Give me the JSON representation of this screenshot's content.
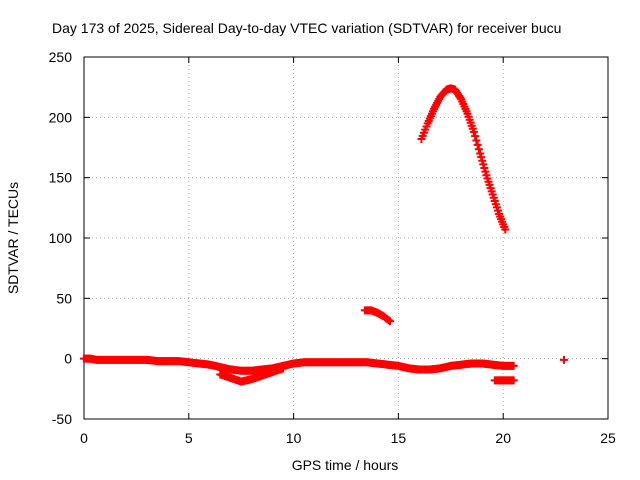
{
  "chart_data": {
    "type": "scatter",
    "title": "Day 173 of 2025, Sidereal Day-to-day VTEC variation (SDTVAR) for receiver bucu",
    "xlabel": "GPS time / hours",
    "ylabel": "SDTVAR / TECUs",
    "xlim": [
      0,
      25
    ],
    "ylim": [
      -50,
      250
    ],
    "xticks": [
      0,
      5,
      10,
      15,
      20,
      25
    ],
    "yticks": [
      -50,
      0,
      50,
      100,
      150,
      200,
      250
    ],
    "xtick_labels": [
      "0",
      "5",
      "10",
      "15",
      "20",
      "25"
    ],
    "ytick_labels": [
      "-50",
      "0",
      "50",
      "100",
      "150",
      "200",
      "250"
    ],
    "grid": true,
    "legend": "none",
    "marker": "+",
    "marker_color": "#ff0000",
    "series": [
      {
        "name": "baseline",
        "points": [
          [
            0.0,
            0
          ],
          [
            0.3,
            0
          ],
          [
            0.6,
            -1
          ],
          [
            1.0,
            -1
          ],
          [
            1.5,
            -1
          ],
          [
            2.0,
            -1
          ],
          [
            2.5,
            -1
          ],
          [
            3.0,
            -1
          ],
          [
            3.5,
            -2
          ],
          [
            4.0,
            -2
          ],
          [
            4.5,
            -2
          ],
          [
            5.0,
            -3
          ],
          [
            5.5,
            -4
          ],
          [
            6.0,
            -5
          ],
          [
            6.5,
            -7
          ],
          [
            7.0,
            -9
          ],
          [
            7.5,
            -10
          ],
          [
            8.0,
            -10
          ],
          [
            8.5,
            -9
          ],
          [
            9.0,
            -8
          ],
          [
            9.5,
            -6
          ],
          [
            10.0,
            -4
          ],
          [
            10.5,
            -3
          ],
          [
            11.0,
            -3
          ],
          [
            11.5,
            -3
          ],
          [
            12.0,
            -3
          ],
          [
            12.5,
            -3
          ],
          [
            13.0,
            -3
          ],
          [
            13.5,
            -3
          ],
          [
            14.0,
            -4
          ],
          [
            14.5,
            -5
          ],
          [
            15.0,
            -6
          ],
          [
            15.5,
            -8
          ],
          [
            16.0,
            -9
          ],
          [
            16.5,
            -9
          ],
          [
            17.0,
            -8
          ],
          [
            17.5,
            -6
          ],
          [
            18.0,
            -5
          ],
          [
            18.5,
            -4
          ],
          [
            19.0,
            -4
          ],
          [
            19.5,
            -5
          ],
          [
            20.0,
            -6
          ],
          [
            20.5,
            -6
          ]
        ]
      },
      {
        "name": "lower-dip",
        "points": [
          [
            6.5,
            -13
          ],
          [
            7.0,
            -16
          ],
          [
            7.5,
            -19
          ],
          [
            8.0,
            -17
          ],
          [
            8.5,
            -14
          ],
          [
            9.0,
            -11
          ],
          [
            9.5,
            -8
          ]
        ]
      },
      {
        "name": "short-arc",
        "points": [
          [
            13.4,
            40
          ],
          [
            13.7,
            40
          ],
          [
            14.0,
            38
          ],
          [
            14.3,
            35
          ],
          [
            14.6,
            31
          ]
        ]
      },
      {
        "name": "main-arc",
        "points": [
          [
            16.1,
            182
          ],
          [
            16.4,
            195
          ],
          [
            16.7,
            207
          ],
          [
            17.0,
            217
          ],
          [
            17.3,
            223
          ],
          [
            17.5,
            224
          ],
          [
            17.7,
            223
          ],
          [
            18.0,
            215
          ],
          [
            18.3,
            203
          ],
          [
            18.6,
            188
          ],
          [
            18.9,
            170
          ],
          [
            19.2,
            152
          ],
          [
            19.5,
            136
          ],
          [
            19.8,
            120
          ],
          [
            20.1,
            107
          ]
        ]
      },
      {
        "name": "offset-segment",
        "points": [
          [
            19.6,
            -18
          ],
          [
            19.9,
            -18
          ],
          [
            20.2,
            -18
          ],
          [
            20.5,
            -18
          ]
        ]
      },
      {
        "name": "isolated-point",
        "points": [
          [
            22.9,
            -1
          ]
        ]
      }
    ]
  }
}
